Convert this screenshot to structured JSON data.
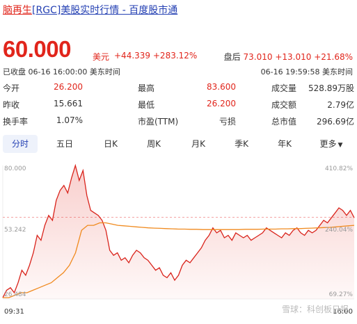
{
  "title": {
    "name": "脑再生",
    "rest": "[RGC]美股实时行情 - 百度股市通"
  },
  "quote": {
    "price": "60.000",
    "currency": "美元",
    "change": "+44.339",
    "change_pct": "+283.12%",
    "status": "已收盘 06-16 16:00:00 美东时间",
    "after_label": "盘后",
    "after_price": "73.010",
    "after_change": "+13.010",
    "after_pct": "+21.68%",
    "after_time": "06-16 19:59:58 美东时间"
  },
  "stats": [
    [
      {
        "label": "今开",
        "value": "26.200",
        "color": "red"
      },
      {
        "label": "最高",
        "value": "83.600",
        "color": "red"
      },
      {
        "label": "成交量",
        "value": "528.89万股",
        "color": "blk"
      }
    ],
    [
      {
        "label": "昨收",
        "value": "15.661",
        "color": "blk"
      },
      {
        "label": "最低",
        "value": "26.200",
        "color": "red"
      },
      {
        "label": "成交额",
        "value": "2.79亿",
        "color": "blk"
      }
    ],
    [
      {
        "label": "换手率",
        "value": "1.07%",
        "color": "blk"
      },
      {
        "label": "市盈(TTM)",
        "value": "亏损",
        "color": "blk"
      },
      {
        "label": "总市值",
        "value": "296.69亿",
        "color": "blk"
      }
    ]
  ],
  "tabs": [
    "分时",
    "五日",
    "日K",
    "周K",
    "月K",
    "季K",
    "年K",
    "更多"
  ],
  "chart_data": {
    "type": "line",
    "y_left": [
      "80.000",
      "53.242",
      "26.484"
    ],
    "y_right": [
      "410.82%",
      "240.04%",
      "69.27%"
    ],
    "x_labels": [
      "09:31",
      "16:00"
    ],
    "ylim": [
      26.484,
      80.0
    ],
    "prev_close_ref": 53.242,
    "series": [
      {
        "values": [
          27,
          30,
          31,
          29,
          33,
          38,
          36,
          40,
          45,
          52,
          50,
          56,
          60,
          58,
          66,
          70,
          72,
          69,
          75,
          80,
          74,
          78,
          68,
          62,
          61,
          60,
          58,
          54,
          46,
          44,
          45,
          42,
          43,
          41,
          44,
          46,
          45,
          43,
          42,
          40,
          38,
          39,
          36,
          35,
          37,
          34,
          36,
          40,
          42,
          41,
          43,
          45,
          47,
          50,
          52,
          55,
          53,
          54,
          51,
          52,
          50,
          53,
          52,
          51,
          52,
          50,
          51,
          52,
          53,
          55,
          54,
          53,
          52,
          51,
          53,
          52,
          54,
          55,
          53,
          52,
          54,
          53,
          54,
          56,
          58,
          57,
          59,
          61,
          63,
          62,
          60,
          62,
          59
        ]
      },
      {
        "values": [
          27,
          27,
          28,
          29,
          29,
          30,
          31,
          32,
          33,
          35,
          37,
          40,
          45,
          54,
          56,
          56,
          57,
          57,
          56.5,
          56,
          55.8,
          55.6,
          55.4,
          55.2,
          55,
          54.9,
          54.8,
          54.7,
          54.6,
          54.5,
          54.5,
          54.4,
          54.4,
          54.3,
          54.3,
          54.3,
          54.3,
          54.3,
          54.3,
          54.3,
          54.4,
          54.4,
          54.4,
          54.5,
          54.5,
          54.5,
          54.6,
          54.6,
          54.7,
          54.7,
          54.8,
          54.9,
          55,
          55.1,
          55.2,
          55.4,
          55.6,
          55.8,
          56
        ]
      }
    ]
  },
  "watermark": "雪球：科创板日报",
  "colors": {
    "accent": "#e1251b",
    "link": "#2440b3",
    "avg_line": "#f08a1e"
  }
}
